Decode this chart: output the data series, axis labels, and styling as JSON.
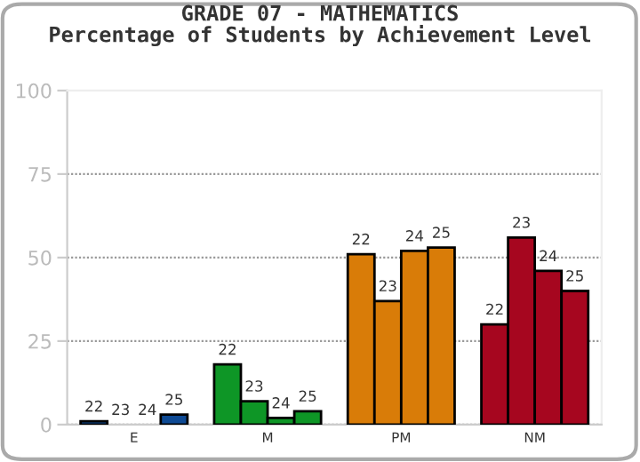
{
  "chart_data": {
    "type": "bar",
    "title": "GRADE 07 - MATHEMATICS\nPercentage of Students by Achievement Level",
    "categories": [
      "E",
      "M",
      "PM",
      "NM"
    ],
    "series": [
      {
        "name": "22",
        "colors": [
          "#0e4a94",
          "#0e9626",
          "#d97c08",
          "#a6061f"
        ],
        "values": [
          1,
          18,
          51,
          30
        ]
      },
      {
        "name": "23",
        "colors": [
          "#0e4a94",
          "#0e9626",
          "#d97c08",
          "#a6061f"
        ],
        "values": [
          0,
          7,
          37,
          56
        ]
      },
      {
        "name": "24",
        "colors": [
          "#0e4a94",
          "#0e9626",
          "#d97c08",
          "#a6061f"
        ],
        "values": [
          0,
          2,
          52,
          46
        ]
      },
      {
        "name": "25",
        "colors": [
          "#0e4a94",
          "#0e9626",
          "#d97c08",
          "#a6061f"
        ],
        "values": [
          3,
          4,
          53,
          40
        ]
      }
    ],
    "ylim": [
      0,
      100
    ],
    "yticks": [
      0,
      25,
      50,
      75,
      100
    ],
    "grid": "y",
    "legend": false
  }
}
